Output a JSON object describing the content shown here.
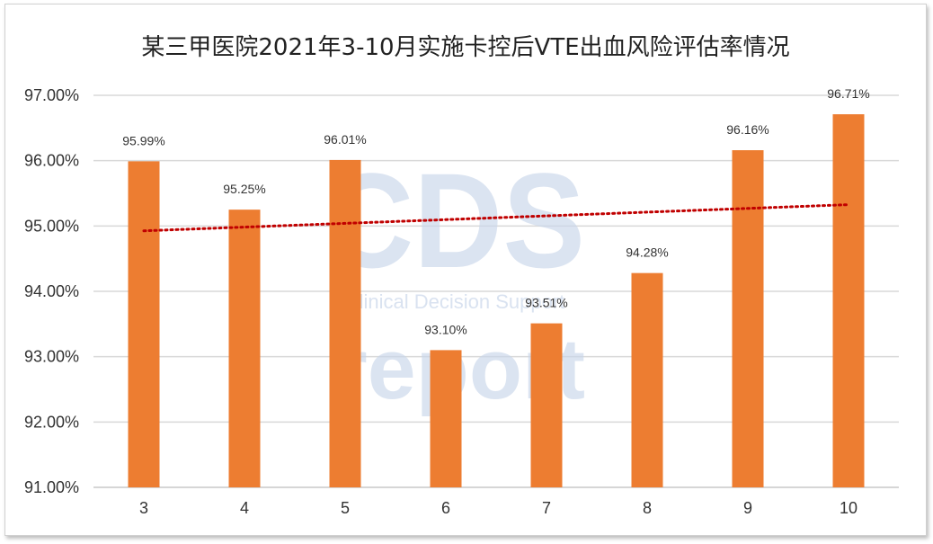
{
  "chart_data": {
    "type": "bar",
    "title": "某三甲医院2021年3-10月实施卡控后VTE出血风险评估率情况",
    "categories": [
      "3",
      "4",
      "5",
      "6",
      "7",
      "8",
      "9",
      "10"
    ],
    "values": [
      95.99,
      95.25,
      96.01,
      93.1,
      93.51,
      94.28,
      96.16,
      96.71
    ],
    "data_labels": [
      "95.99%",
      "95.25%",
      "96.01%",
      "93.10%",
      "93.51%",
      "94.28%",
      "96.16%",
      "96.71%"
    ],
    "ylim": [
      91,
      97
    ],
    "y_ticks": [
      91,
      92,
      93,
      94,
      95,
      96,
      97
    ],
    "y_tick_labels": [
      "91.00%",
      "92.00%",
      "93.00%",
      "94.00%",
      "95.00%",
      "96.00%",
      "97.00%"
    ],
    "grid": true,
    "trendline": {
      "type": "linear",
      "style": "dotted",
      "color": "#c00000"
    },
    "bar_color": "#ed7d31",
    "xlabel": "",
    "ylabel": ""
  },
  "watermark": {
    "logo_text": "CDS",
    "tagline": "Clinical Decision Support",
    "word": "report"
  }
}
